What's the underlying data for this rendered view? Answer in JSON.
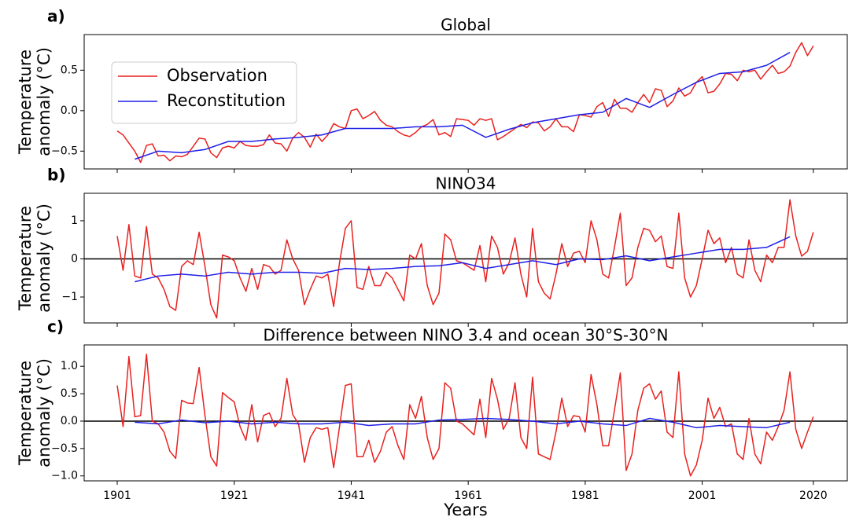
{
  "chart_data": [
    {
      "type": "line",
      "panel_label": "a)",
      "title": "Global",
      "ylabel": [
        "Temperature",
        "anomaly (°C)"
      ],
      "xlim": [
        1895.35,
        2025.8
      ],
      "ylim": [
        -0.72,
        0.94
      ],
      "yticks": [
        {
          "value": -0.5,
          "label": "−0.5"
        },
        {
          "value": 0,
          "label": "0.0"
        },
        {
          "value": 0.5,
          "label": "0.5"
        }
      ],
      "legend": "upper left",
      "series": [
        {
          "name": "Observation",
          "color": "#e8211f",
          "x": [
            1901,
            1902,
            1903,
            1904,
            1905,
            1906,
            1907,
            1908,
            1909,
            1910,
            1911,
            1912,
            1913,
            1914,
            1915,
            1916,
            1917,
            1918,
            1919,
            1920,
            1921,
            1922,
            1923,
            1924,
            1925,
            1926,
            1927,
            1928,
            1929,
            1930,
            1931,
            1932,
            1933,
            1934,
            1935,
            1936,
            1937,
            1938,
            1939,
            1940,
            1941,
            1942,
            1943,
            1944,
            1945,
            1946,
            1947,
            1948,
            1949,
            1950,
            1951,
            1952,
            1953,
            1954,
            1955,
            1956,
            1957,
            1958,
            1959,
            1960,
            1961,
            1962,
            1963,
            1964,
            1965,
            1966,
            1967,
            1968,
            1969,
            1970,
            1971,
            1972,
            1973,
            1974,
            1975,
            1976,
            1977,
            1978,
            1979,
            1980,
            1981,
            1982,
            1983,
            1984,
            1985,
            1986,
            1987,
            1988,
            1989,
            1990,
            1991,
            1992,
            1993,
            1994,
            1995,
            1996,
            1997,
            1998,
            1999,
            2000,
            2001,
            2002,
            2003,
            2004,
            2005,
            2006,
            2007,
            2008,
            2009,
            2010,
            2011,
            2012,
            2013,
            2014,
            2015,
            2016,
            2017,
            2018,
            2019,
            2020
          ],
          "values": [
            -0.25,
            -0.3,
            -0.4,
            -0.5,
            -0.64,
            -0.43,
            -0.41,
            -0.56,
            -0.55,
            -0.62,
            -0.56,
            -0.57,
            -0.54,
            -0.44,
            -0.34,
            -0.35,
            -0.52,
            -0.58,
            -0.46,
            -0.44,
            -0.46,
            -0.38,
            -0.43,
            -0.44,
            -0.44,
            -0.42,
            -0.3,
            -0.4,
            -0.41,
            -0.5,
            -0.34,
            -0.27,
            -0.33,
            -0.45,
            -0.29,
            -0.38,
            -0.3,
            -0.16,
            -0.2,
            -0.22,
            0.0,
            0.02,
            -0.1,
            -0.06,
            -0.01,
            -0.12,
            -0.18,
            -0.2,
            -0.26,
            -0.3,
            -0.32,
            -0.27,
            -0.2,
            -0.17,
            -0.11,
            -0.3,
            -0.27,
            -0.32,
            -0.1,
            -0.11,
            -0.12,
            -0.18,
            -0.1,
            -0.12,
            -0.1,
            -0.36,
            -0.32,
            -0.27,
            -0.22,
            -0.17,
            -0.21,
            -0.14,
            -0.15,
            -0.25,
            -0.2,
            -0.1,
            -0.2,
            -0.2,
            -0.26,
            -0.05,
            -0.06,
            -0.08,
            0.05,
            0.1,
            -0.07,
            0.14,
            0.03,
            0.03,
            -0.02,
            0.1,
            0.2,
            0.1,
            0.27,
            0.25,
            0.05,
            0.12,
            0.28,
            0.18,
            0.22,
            0.35,
            0.42,
            0.22,
            0.24,
            0.33,
            0.46,
            0.45,
            0.37,
            0.5,
            0.48,
            0.5,
            0.39,
            0.48,
            0.56,
            0.46,
            0.48,
            0.55,
            0.72,
            0.84,
            0.68,
            0.8
          ]
        },
        {
          "name": "Reconstitution",
          "color": "#1f1fe8",
          "x": [
            1904,
            1908,
            1912,
            1916,
            1920,
            1924,
            1928,
            1932,
            1936,
            1940,
            1944,
            1948,
            1952,
            1956,
            1960,
            1964,
            1968,
            1972,
            1976,
            1980,
            1984,
            1988,
            1992,
            1996,
            2000,
            2004,
            2008,
            2012,
            2016
          ],
          "values": [
            -0.6,
            -0.5,
            -0.52,
            -0.48,
            -0.38,
            -0.38,
            -0.35,
            -0.33,
            -0.3,
            -0.22,
            -0.22,
            -0.22,
            -0.2,
            -0.2,
            -0.18,
            -0.33,
            -0.23,
            -0.15,
            -0.1,
            -0.05,
            -0.02,
            0.15,
            0.04,
            0.2,
            0.35,
            0.46,
            0.48,
            0.56,
            0.72
          ]
        }
      ]
    },
    {
      "type": "line",
      "panel_label": "b)",
      "title": "NINO34",
      "ylabel": [
        "Temperature",
        "anomaly (°C)"
      ],
      "xlim": [
        1895.35,
        2025.8
      ],
      "ylim": [
        -1.68,
        1.72
      ],
      "yticks": [
        {
          "value": -1,
          "label": "−1"
        },
        0,
        1
      ],
      "zero_line": true,
      "series": [
        {
          "color": "#e8211f",
          "x": [
            1901,
            1902,
            1903,
            1904,
            1905,
            1906,
            1907,
            1908,
            1909,
            1910,
            1911,
            1912,
            1913,
            1914,
            1915,
            1916,
            1917,
            1918,
            1919,
            1920,
            1921,
            1922,
            1923,
            1924,
            1925,
            1926,
            1927,
            1928,
            1929,
            1930,
            1931,
            1932,
            1933,
            1934,
            1935,
            1936,
            1937,
            1938,
            1939,
            1940,
            1941,
            1942,
            1943,
            1944,
            1945,
            1946,
            1947,
            1948,
            1949,
            1950,
            1951,
            1952,
            1953,
            1954,
            1955,
            1956,
            1957,
            1958,
            1959,
            1960,
            1961,
            1962,
            1963,
            1964,
            1965,
            1966,
            1967,
            1968,
            1969,
            1970,
            1971,
            1972,
            1973,
            1974,
            1975,
            1976,
            1977,
            1978,
            1979,
            1980,
            1981,
            1982,
            1983,
            1984,
            1985,
            1986,
            1987,
            1988,
            1989,
            1990,
            1991,
            1992,
            1993,
            1994,
            1995,
            1996,
            1997,
            1998,
            1999,
            2000,
            2001,
            2002,
            2003,
            2004,
            2005,
            2006,
            2007,
            2008,
            2009,
            2010,
            2011,
            2012,
            2013,
            2014,
            2015,
            2016,
            2017,
            2018,
            2019,
            2020
          ],
          "values": [
            0.6,
            -0.3,
            0.9,
            -0.45,
            -0.5,
            0.85,
            -0.4,
            -0.5,
            -0.8,
            -1.25,
            -1.35,
            -0.2,
            -0.05,
            -0.15,
            0.7,
            -0.2,
            -1.2,
            -1.55,
            0.1,
            0.05,
            -0.05,
            -0.5,
            -0.85,
            -0.25,
            -0.8,
            -0.15,
            -0.2,
            -0.4,
            -0.3,
            0.5,
            0.0,
            -0.3,
            -1.2,
            -0.8,
            -0.45,
            -0.5,
            -0.4,
            -1.25,
            -0.1,
            0.8,
            1.0,
            -0.75,
            -0.8,
            -0.2,
            -0.7,
            -0.7,
            -0.35,
            -0.5,
            -0.8,
            -1.1,
            0.1,
            0.0,
            0.4,
            -0.7,
            -1.2,
            -0.9,
            0.65,
            0.5,
            -0.05,
            -0.1,
            -0.2,
            -0.3,
            0.35,
            -0.6,
            0.6,
            0.3,
            -0.4,
            -0.1,
            0.55,
            -0.4,
            -1.0,
            0.8,
            -0.6,
            -0.9,
            -1.05,
            -0.4,
            0.4,
            -0.2,
            0.15,
            0.2,
            -0.1,
            1.0,
            0.5,
            -0.4,
            -0.5,
            0.3,
            1.2,
            -0.7,
            -0.5,
            0.3,
            0.8,
            0.75,
            0.45,
            0.6,
            -0.2,
            -0.25,
            1.2,
            -0.5,
            -1.0,
            -0.7,
            0.0,
            0.75,
            0.4,
            0.55,
            -0.1,
            0.3,
            -0.4,
            -0.5,
            0.5,
            -0.3,
            -0.6,
            0.1,
            -0.1,
            0.3,
            0.3,
            1.55,
            0.6,
            0.07,
            0.2,
            0.7
          ]
        },
        {
          "color": "#1f1fe8",
          "x": [
            1904,
            1908,
            1912,
            1916,
            1920,
            1924,
            1928,
            1932,
            1936,
            1940,
            1944,
            1948,
            1952,
            1956,
            1960,
            1964,
            1968,
            1972,
            1976,
            1980,
            1984,
            1988,
            1992,
            1996,
            2000,
            2004,
            2008,
            2012,
            2016
          ],
          "values": [
            -0.6,
            -0.45,
            -0.4,
            -0.45,
            -0.35,
            -0.4,
            -0.35,
            -0.35,
            -0.38,
            -0.25,
            -0.28,
            -0.25,
            -0.2,
            -0.18,
            -0.1,
            -0.25,
            -0.15,
            -0.05,
            -0.15,
            0.0,
            -0.02,
            0.08,
            -0.05,
            0.05,
            0.15,
            0.25,
            0.25,
            0.3,
            0.58
          ]
        }
      ]
    },
    {
      "type": "line",
      "panel_label": "c)",
      "title": "Difference between NINO 3.4 and ocean 30°S-30°N",
      "ylabel": [
        "Temperature",
        "anomaly (°C)"
      ],
      "xlabel": "Years",
      "xlim": [
        1895.35,
        2025.8
      ],
      "ylim": [
        -1.09,
        1.39
      ],
      "xticks": [
        1901,
        1921,
        1941,
        1961,
        1981,
        2001,
        2020
      ],
      "yticks": [
        {
          "value": -1,
          "label": "−1.0"
        },
        {
          "value": -0.5,
          "label": "−0.5"
        },
        {
          "value": 0,
          "label": "0.0"
        },
        {
          "value": 0.5,
          "label": "0.5"
        },
        {
          "value": 1,
          "label": "1.0"
        }
      ],
      "zero_line": true,
      "series": [
        {
          "color": "#e8211f",
          "x": [
            1901,
            1902,
            1903,
            1904,
            1905,
            1906,
            1907,
            1908,
            1909,
            1910,
            1911,
            1912,
            1913,
            1914,
            1915,
            1916,
            1917,
            1918,
            1919,
            1920,
            1921,
            1922,
            1923,
            1924,
            1925,
            1926,
            1927,
            1928,
            1929,
            1930,
            1931,
            1932,
            1933,
            1934,
            1935,
            1936,
            1937,
            1938,
            1939,
            1940,
            1941,
            1942,
            1943,
            1944,
            1945,
            1946,
            1947,
            1948,
            1949,
            1950,
            1951,
            1952,
            1953,
            1954,
            1955,
            1956,
            1957,
            1958,
            1959,
            1960,
            1961,
            1962,
            1963,
            1964,
            1965,
            1966,
            1967,
            1968,
            1969,
            1970,
            1971,
            1972,
            1973,
            1974,
            1975,
            1976,
            1977,
            1978,
            1979,
            1980,
            1981,
            1982,
            1983,
            1984,
            1985,
            1986,
            1987,
            1988,
            1989,
            1990,
            1991,
            1992,
            1993,
            1994,
            1995,
            1996,
            1997,
            1998,
            1999,
            2000,
            2001,
            2002,
            2003,
            2004,
            2005,
            2006,
            2007,
            2008,
            2009,
            2010,
            2011,
            2012,
            2013,
            2014,
            2015,
            2016,
            2017,
            2018,
            2019,
            2020
          ],
          "values": [
            0.65,
            -0.1,
            1.18,
            0.08,
            0.1,
            1.22,
            0.0,
            -0.05,
            -0.2,
            -0.55,
            -0.68,
            0.38,
            0.33,
            0.32,
            0.98,
            0.1,
            -0.65,
            -0.82,
            0.52,
            0.43,
            0.35,
            -0.1,
            -0.35,
            0.3,
            -0.38,
            0.1,
            0.15,
            -0.1,
            0.05,
            0.78,
            0.12,
            -0.05,
            -0.75,
            -0.3,
            -0.12,
            -0.15,
            -0.12,
            -0.85,
            -0.1,
            0.65,
            0.68,
            -0.65,
            -0.65,
            -0.35,
            -0.75,
            -0.55,
            -0.2,
            -0.1,
            -0.45,
            -0.7,
            0.3,
            0.05,
            0.45,
            -0.3,
            -0.7,
            -0.5,
            0.7,
            0.6,
            0.0,
            -0.05,
            -0.15,
            -0.25,
            0.4,
            -0.3,
            0.78,
            0.4,
            -0.15,
            0.05,
            0.7,
            -0.3,
            -0.5,
            0.8,
            -0.6,
            -0.65,
            -0.7,
            -0.2,
            0.42,
            -0.1,
            0.1,
            0.08,
            -0.2,
            0.85,
            0.3,
            -0.45,
            -0.45,
            0.2,
            0.88,
            -0.9,
            -0.6,
            0.2,
            0.6,
            0.68,
            0.4,
            0.55,
            -0.2,
            -0.3,
            0.9,
            -0.6,
            -1.0,
            -0.8,
            -0.35,
            0.42,
            0.05,
            0.25,
            -0.1,
            -0.05,
            -0.6,
            -0.7,
            0.05,
            -0.6,
            -0.78,
            -0.2,
            -0.35,
            -0.1,
            0.2,
            0.9,
            -0.15,
            -0.5,
            -0.2,
            0.08
          ]
        },
        {
          "color": "#1f1fe8",
          "x": [
            1904,
            1908,
            1912,
            1916,
            1920,
            1924,
            1928,
            1932,
            1936,
            1940,
            1944,
            1948,
            1952,
            1956,
            1960,
            1964,
            1968,
            1972,
            1976,
            1980,
            1984,
            1988,
            1992,
            1996,
            2000,
            2004,
            2008,
            2012,
            2016
          ],
          "values": [
            -0.02,
            -0.05,
            0.02,
            -0.03,
            0.0,
            -0.05,
            -0.02,
            -0.05,
            -0.05,
            -0.02,
            -0.08,
            -0.05,
            -0.05,
            0.02,
            0.03,
            0.05,
            0.03,
            0.0,
            -0.05,
            0.0,
            -0.05,
            -0.08,
            0.05,
            -0.02,
            -0.12,
            -0.08,
            -0.1,
            -0.12,
            -0.02
          ]
        }
      ]
    }
  ]
}
